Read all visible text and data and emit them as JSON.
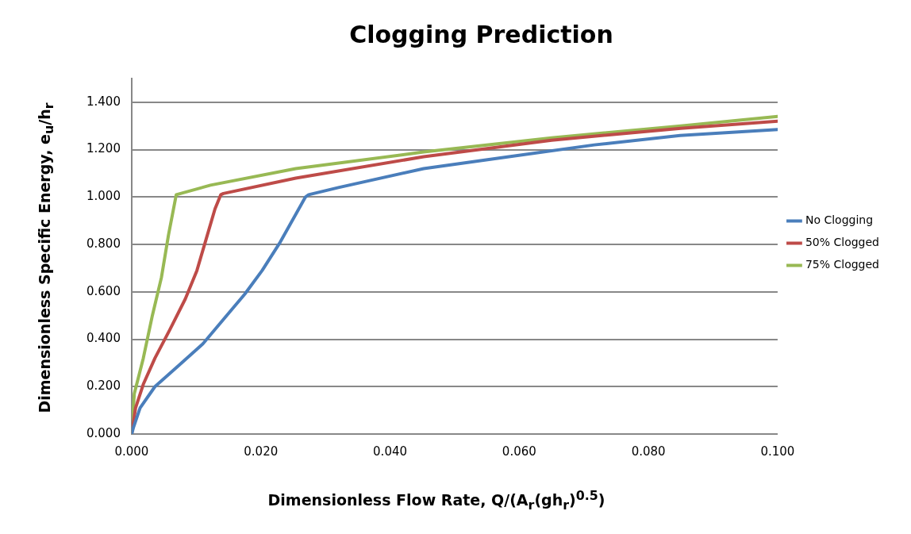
{
  "chart_data": {
    "type": "line",
    "title": "Clogging Prediction",
    "xlabel": "Dimensionless Flow Rate, Q/(A$_{r}$(gh$_{r}$)$^{0.5}$)",
    "ylabel": "Dimensionless Specific Energy, e$_{u}$/h$_{r}$",
    "xlim": [
      0,
      0.1
    ],
    "xticks": [
      {
        "value": 0,
        "label": "0.000"
      },
      {
        "value": 0.02,
        "label": "0.020"
      },
      {
        "value": 0.04,
        "label": "0.040"
      },
      {
        "value": 0.06,
        "label": "0.060"
      },
      {
        "value": 0.08,
        "label": "0.080"
      },
      {
        "value": 0.1,
        "label": "0.100"
      }
    ],
    "ylim": [
      0,
      1.5
    ],
    "yticks": [
      {
        "value": 0,
        "label": "0.000"
      },
      {
        "value": 0.2,
        "label": "0.200"
      },
      {
        "value": 0.4,
        "label": "0.400"
      },
      {
        "value": 0.6,
        "label": "0.600"
      },
      {
        "value": 0.8,
        "label": "0.800"
      },
      {
        "value": 1,
        "label": "1.000"
      },
      {
        "value": 1.2,
        "label": "1.200"
      },
      {
        "value": 1.4,
        "label": "1.400"
      }
    ],
    "grid": "y",
    "legend": "right",
    "marker": "none",
    "line_style": "solid",
    "series": [
      {
        "name": "No Clogging",
        "color": "#4a7ebb",
        "x": [
          0,
          0.0003,
          0.0013,
          0.0036,
          0.0073,
          0.011,
          0.0147,
          0.0175,
          0.0202,
          0.023,
          0.0269,
          0.0274,
          0.032,
          0.0452,
          0.0584,
          0.0716,
          0.0849,
          0.1
        ],
        "values": [
          0,
          0.03,
          0.11,
          0.2,
          0.29,
          0.38,
          0.5,
          0.59,
          0.69,
          0.81,
          1.0,
          1.01,
          1.04,
          1.12,
          1.17,
          1.22,
          1.26,
          1.285
        ]
      },
      {
        "name": "50% Clogged",
        "color": "#be4b48",
        "x": [
          0,
          0.0006,
          0.0018,
          0.0036,
          0.0059,
          0.0083,
          0.0101,
          0.0115,
          0.0129,
          0.0138,
          0.0142,
          0.0254,
          0.0452,
          0.065,
          0.085,
          0.1
        ],
        "values": [
          0,
          0.11,
          0.21,
          0.32,
          0.44,
          0.57,
          0.69,
          0.82,
          0.95,
          1.01,
          1.015,
          1.08,
          1.17,
          1.24,
          1.29,
          1.32
        ]
      },
      {
        "name": "75% Clogged",
        "color": "#98b954",
        "x": [
          0,
          0.0004,
          0.0018,
          0.0032,
          0.0046,
          0.0057,
          0.0069,
          0.0122,
          0.0254,
          0.0452,
          0.065,
          0.085,
          0.1
        ],
        "values": [
          0,
          0.17,
          0.32,
          0.5,
          0.66,
          0.84,
          1.01,
          1.05,
          1.12,
          1.19,
          1.25,
          1.3,
          1.34
        ]
      }
    ]
  }
}
